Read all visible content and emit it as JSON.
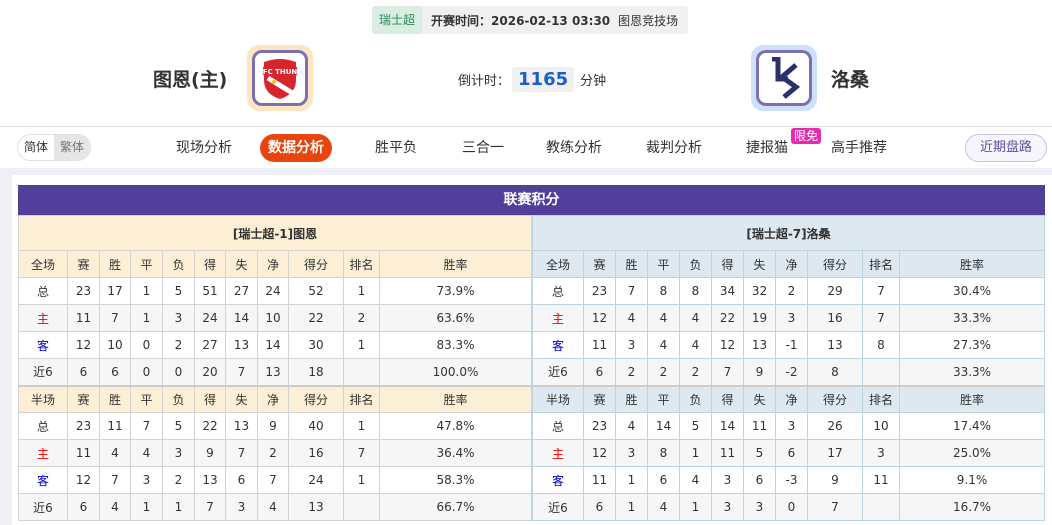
{
  "header": {
    "league": "瑞士超",
    "kickoff": "开赛时间：2026-02-13 03:30",
    "venue": "图恩竞技场",
    "home_team": "图恩(主)",
    "away_team": "洛桑",
    "countdown_label": "倒计时：",
    "countdown_value": "1165",
    "countdown_unit": "分钟"
  },
  "nav": {
    "lang": [
      "简体",
      "繁体"
    ],
    "tabs": [
      "现场分析",
      "数据分析",
      "胜平负",
      "三合一",
      "教练分析",
      "裁判分析",
      "捷报猫",
      "高手推荐"
    ],
    "active": "数据分析",
    "badge": "限免",
    "recent": "近期盘路"
  },
  "colors": {
    "accent": "#e8450e",
    "title_bar": "#513f9b",
    "home_bg": "#fcefd6",
    "away_bg": "#dde8f0"
  },
  "standings": {
    "title": "联赛积分",
    "home": {
      "caption": "[瑞士超-1]图恩",
      "full_header": [
        "全场",
        "赛",
        "胜",
        "平",
        "负",
        "得",
        "失",
        "净",
        "得分",
        "排名",
        "胜率"
      ],
      "full": [
        [
          "总",
          "23",
          "17",
          "1",
          "5",
          "51",
          "27",
          "24",
          "52",
          "1",
          "73.9%"
        ],
        [
          "主",
          "11",
          "7",
          "1",
          "3",
          "24",
          "14",
          "10",
          "22",
          "2",
          "63.6%"
        ],
        [
          "客",
          "12",
          "10",
          "0",
          "2",
          "27",
          "13",
          "14",
          "30",
          "1",
          "83.3%"
        ],
        [
          "近6",
          "6",
          "6",
          "0",
          "0",
          "20",
          "7",
          "13",
          "18",
          "",
          "100.0%"
        ]
      ],
      "half_header": [
        "半场",
        "赛",
        "胜",
        "平",
        "负",
        "得",
        "失",
        "净",
        "得分",
        "排名",
        "胜率"
      ],
      "half": [
        [
          "总",
          "23",
          "11",
          "7",
          "5",
          "22",
          "13",
          "9",
          "40",
          "1",
          "47.8%"
        ],
        [
          "主",
          "11",
          "4",
          "4",
          "3",
          "9",
          "7",
          "2",
          "16",
          "7",
          "36.4%"
        ],
        [
          "客",
          "12",
          "7",
          "3",
          "2",
          "13",
          "6",
          "7",
          "24",
          "1",
          "58.3%"
        ],
        [
          "近6",
          "6",
          "4",
          "1",
          "1",
          "7",
          "3",
          "4",
          "13",
          "",
          "66.7%"
        ]
      ]
    },
    "away": {
      "caption": "[瑞士超-7]洛桑",
      "full_header": [
        "全场",
        "赛",
        "胜",
        "平",
        "负",
        "得",
        "失",
        "净",
        "得分",
        "排名",
        "胜率"
      ],
      "full": [
        [
          "总",
          "23",
          "7",
          "8",
          "8",
          "34",
          "32",
          "2",
          "29",
          "7",
          "30.4%"
        ],
        [
          "主",
          "12",
          "4",
          "4",
          "4",
          "22",
          "19",
          "3",
          "16",
          "7",
          "33.3%"
        ],
        [
          "客",
          "11",
          "3",
          "4",
          "4",
          "12",
          "13",
          "-1",
          "13",
          "8",
          "27.3%"
        ],
        [
          "近6",
          "6",
          "2",
          "2",
          "2",
          "7",
          "9",
          "-2",
          "8",
          "",
          "33.3%"
        ]
      ],
      "half_header": [
        "半场",
        "赛",
        "胜",
        "平",
        "负",
        "得",
        "失",
        "净",
        "得分",
        "排名",
        "胜率"
      ],
      "half": [
        [
          "总",
          "23",
          "4",
          "14",
          "5",
          "14",
          "11",
          "3",
          "26",
          "10",
          "17.4%"
        ],
        [
          "主",
          "12",
          "3",
          "8",
          "1",
          "11",
          "5",
          "6",
          "17",
          "3",
          "25.0%"
        ],
        [
          "客",
          "11",
          "1",
          "6",
          "4",
          "3",
          "6",
          "-3",
          "9",
          "11",
          "9.1%"
        ],
        [
          "近6",
          "6",
          "1",
          "4",
          "1",
          "3",
          "3",
          "0",
          "7",
          "",
          "16.7%"
        ]
      ]
    }
  }
}
